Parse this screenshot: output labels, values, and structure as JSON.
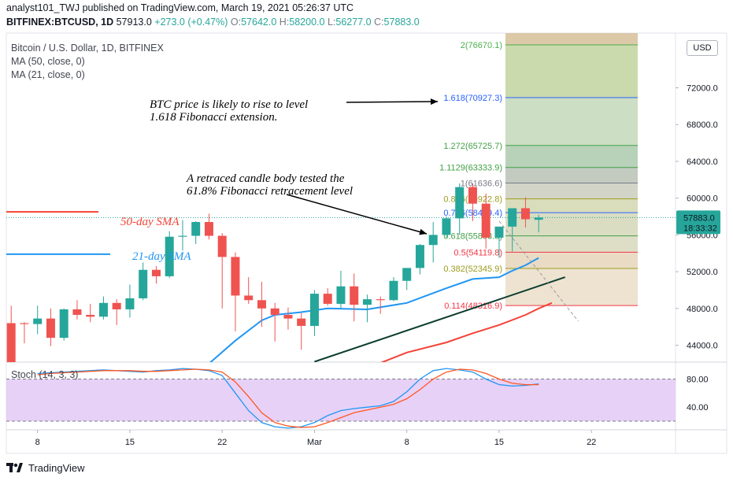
{
  "header": {
    "author": "analyst101_TWJ",
    "published": "published on TradingView.com, March 19, 2021 05:26:37 UTC",
    "symbol": "BITFINEX:BTCUSD, 1D",
    "price": "57913.0",
    "change": "+273.0 (+0.47%)",
    "o_label": "O:",
    "o_value": "57642.0",
    "h_label": "H:",
    "h_value": "58200.0",
    "l_label": "L:",
    "l_value": "56277.0",
    "c_label": "C:",
    "c_value": "57883.0"
  },
  "legend": {
    "title": "Bitcoin / U.S. Dollar, 1D, BITFINEX",
    "ma50": "MA (50, close, 0)",
    "ma21": "MA (21, close, 0)"
  },
  "currency_button": "USD",
  "current_price_tag": {
    "price": "57883.0",
    "countdown": "18:33:32"
  },
  "price_axis_partial_top": "7",
  "annotations": {
    "fib_extension_line1": "BTC price is likely to rise to level",
    "fib_extension_line2": "1.618 Fibonacci extension.",
    "retrace_line1": "A retraced candle body tested the",
    "retrace_line2": "61.8% Fibonacci retracement level",
    "sma50": "50-day SMA",
    "sma21": "21-day SMA"
  },
  "stoch": {
    "label": "Stoch (14, 3, 3)",
    "upper_tick": "80.00",
    "lower_tick": "40.00",
    "upper_band": 80,
    "lower_band": 20,
    "k": [
      88,
      89,
      90,
      91,
      92,
      93,
      92,
      91,
      90,
      92,
      93,
      95,
      94,
      92,
      85,
      60,
      35,
      18,
      12,
      10,
      12,
      18,
      28,
      35,
      38,
      40,
      42,
      48,
      62,
      80,
      92,
      95,
      93,
      90,
      80,
      72,
      70,
      71,
      73
    ],
    "d": [
      86,
      88,
      89,
      90,
      91,
      92,
      92,
      92,
      91,
      91,
      92,
      93,
      94,
      93,
      90,
      76,
      55,
      32,
      18,
      13,
      11,
      12,
      18,
      25,
      32,
      36,
      40,
      44,
      52,
      65,
      80,
      90,
      94,
      93,
      88,
      80,
      74,
      72,
      72
    ]
  },
  "chart_data": {
    "type": "candlestick",
    "title": "Bitcoin / U.S. Dollar, 1D, BITFINEX",
    "x_ticks": [
      {
        "i": 2,
        "label": "8"
      },
      {
        "i": 9,
        "label": "15"
      },
      {
        "i": 16,
        "label": "22"
      },
      {
        "i": 23,
        "label": "Mar"
      },
      {
        "i": 30,
        "label": "8"
      },
      {
        "i": 37,
        "label": "15"
      },
      {
        "i": 44,
        "label": "22"
      }
    ],
    "y_ticks": [
      "44000.0",
      "48000.0",
      "52000.0",
      "56000.0",
      "60000.0",
      "64000.0",
      "68000.0",
      "72000.0"
    ],
    "ylim": [
      41000,
      77800
    ],
    "candles": [
      [
        46400,
        48300,
        38000,
        38000
      ],
      [
        46400,
        46500,
        44200,
        46300
      ],
      [
        46300,
        48300,
        45200,
        46900
      ],
      [
        46900,
        48000,
        43900,
        44800
      ],
      [
        44800,
        48000,
        44500,
        47900
      ],
      [
        47900,
        48900,
        46800,
        47300
      ],
      [
        47300,
        48500,
        46500,
        47100
      ],
      [
        47100,
        49300,
        46800,
        48600
      ],
      [
        48600,
        49000,
        46200,
        47900
      ],
      [
        47900,
        50600,
        47000,
        49100
      ],
      [
        49100,
        53000,
        48900,
        52200
      ],
      [
        52200,
        52600,
        50700,
        51500
      ],
      [
        51500,
        56400,
        51300,
        55800
      ],
      [
        55800,
        57600,
        54300,
        55900
      ],
      [
        55900,
        57500,
        55000,
        57400
      ],
      [
        57400,
        58300,
        55500,
        55900
      ],
      [
        55900,
        56200,
        48000,
        53600
      ],
      [
        53600,
        54100,
        45500,
        49400
      ],
      [
        49400,
        51400,
        48500,
        48900
      ],
      [
        48900,
        50900,
        46000,
        48000
      ],
      [
        48000,
        48600,
        44400,
        47300
      ],
      [
        47300,
        48100,
        45700,
        46900
      ],
      [
        46900,
        47500,
        43500,
        46100
      ],
      [
        46100,
        50000,
        45000,
        49600
      ],
      [
        49600,
        50200,
        48300,
        48500
      ],
      [
        48500,
        52100,
        48000,
        50400
      ],
      [
        50400,
        51800,
        46600,
        48400
      ],
      [
        48400,
        49500,
        46500,
        49000
      ],
      [
        49000,
        49300,
        47400,
        48900
      ],
      [
        48900,
        51400,
        48800,
        51000
      ],
      [
        51000,
        52400,
        50000,
        52400
      ],
      [
        52400,
        55000,
        51700,
        54900
      ],
      [
        54900,
        57400,
        53000,
        56000
      ],
      [
        56000,
        58000,
        55700,
        57800
      ],
      [
        57800,
        61600,
        56000,
        61200
      ],
      [
        61200,
        61600,
        57500,
        59400
      ],
      [
        59400,
        60500,
        54500,
        55700
      ],
      [
        55700,
        56800,
        53500,
        56900
      ],
      [
        56900,
        58900,
        54200,
        58900
      ],
      [
        58900,
        60100,
        56800,
        57700
      ],
      [
        57642,
        58200,
        56277,
        57883
      ]
    ],
    "ma21": [
      [
        12,
        40000
      ],
      [
        15,
        42000
      ],
      [
        17,
        44500
      ],
      [
        19,
        46700
      ],
      [
        20,
        47300
      ],
      [
        22,
        47600
      ],
      [
        24,
        48000
      ],
      [
        27,
        47900
      ],
      [
        30,
        48600
      ],
      [
        33,
        50200
      ],
      [
        35,
        51200
      ],
      [
        36,
        51300
      ],
      [
        37,
        51400
      ],
      [
        38,
        52100
      ],
      [
        39,
        52700
      ],
      [
        40,
        53500
      ]
    ],
    "ma50": [
      [
        27,
        41500
      ],
      [
        30,
        43200
      ],
      [
        33,
        44300
      ],
      [
        35,
        45300
      ],
      [
        37,
        46200
      ],
      [
        39,
        47300
      ],
      [
        40,
        48000
      ],
      [
        41,
        48600
      ]
    ],
    "ma50_early": 58500,
    "ma21_early": 53900,
    "trendline": [
      [
        23,
        42200
      ],
      [
        42,
        51400
      ]
    ],
    "trendline_dashed": [
      [
        37,
        57500
      ],
      [
        43,
        46600
      ]
    ],
    "fib_levels": [
      {
        "label": "2(76670.1)",
        "value": 76670.1,
        "color": "#4caf50"
      },
      {
        "label": "1.618(70927.3)",
        "value": 70927.3,
        "color": "#2962ff"
      },
      {
        "label": "1.272(65725.7)",
        "value": 65725.7,
        "color": "#43a047"
      },
      {
        "label": "1.1129(63333.9)",
        "value": 63333.9,
        "color": "#43a047"
      },
      {
        "label": "1(61636.6)",
        "value": 61636.6,
        "color": "#787b86"
      },
      {
        "label": "0.886(59922.8)",
        "value": 59922.8,
        "color": "#9c9c1f"
      },
      {
        "label": "0.786(58419.4)",
        "value": 58419.4,
        "color": "#2962ff"
      },
      {
        "label": "0.618(55893.8)",
        "value": 55893.8,
        "color": "#43a047"
      },
      {
        "label": "0.5(54119.8)",
        "value": 54119.8,
        "color": "#f23645"
      },
      {
        "label": "0.382(52345.9)",
        "value": 52345.9,
        "color": "#9c9c1f"
      },
      {
        "label": "0.114(48316.9)",
        "value": 48316.9,
        "color": "#f23645"
      }
    ]
  },
  "footer": {
    "brand": "TradingView"
  },
  "colors": {
    "up": "#26a69a",
    "down": "#ef5350",
    "ma21": "#2196f3",
    "ma50": "#f44336",
    "stoch_k": "#2196f3",
    "stoch_d": "#ff5722"
  }
}
